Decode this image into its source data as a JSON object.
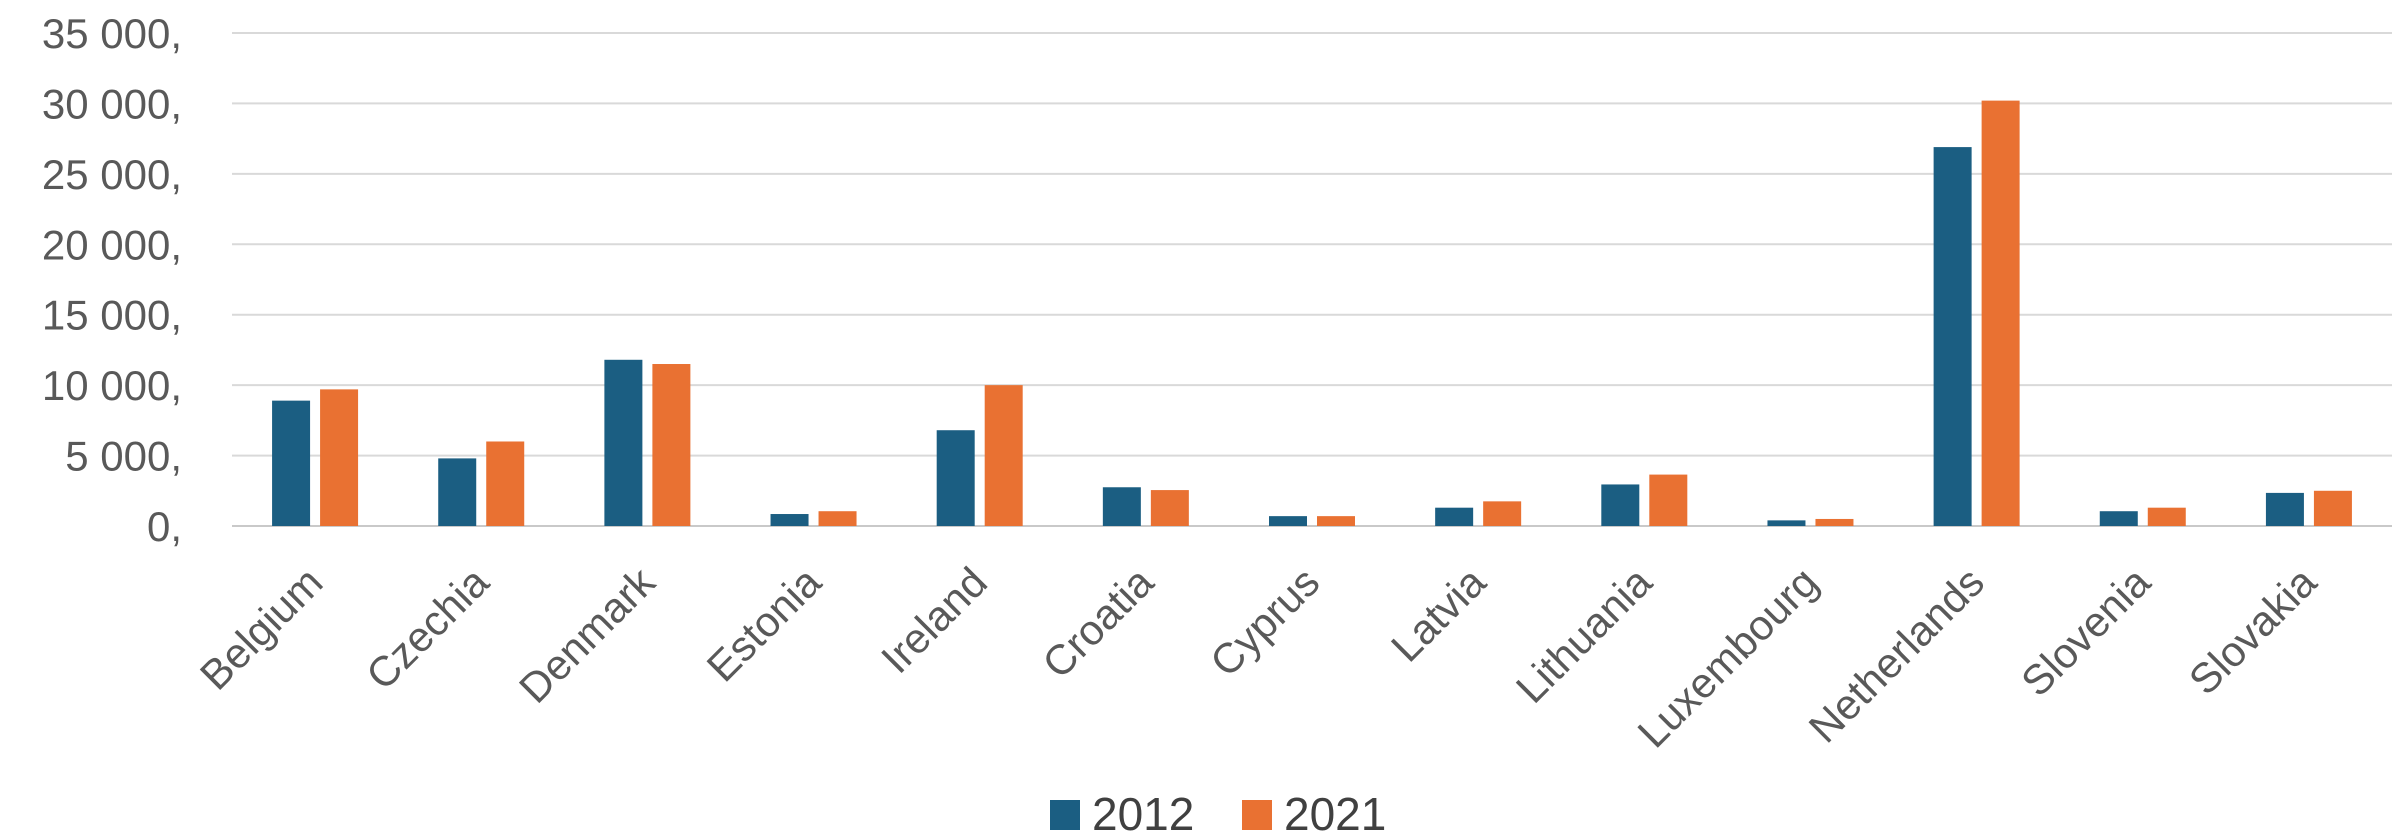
{
  "chart_data": {
    "type": "bar",
    "title": "",
    "xlabel": "",
    "ylabel": "",
    "ylim": [
      0,
      35000
    ],
    "grid": true,
    "legend_position": "bottom",
    "y_ticks": [
      {
        "value": 0,
        "label": "0,"
      },
      {
        "value": 5000,
        "label": "5 000,"
      },
      {
        "value": 10000,
        "label": "10 000,"
      },
      {
        "value": 15000,
        "label": "15 000,"
      },
      {
        "value": 20000,
        "label": "20 000,"
      },
      {
        "value": 25000,
        "label": "25 000,"
      },
      {
        "value": 30000,
        "label": "30 000,"
      },
      {
        "value": 35000,
        "label": "35 000,"
      }
    ],
    "categories": [
      "Belgium",
      "Czechia",
      "Denmark",
      "Estonia",
      "Ireland",
      "Croatia",
      "Cyprus",
      "Latvia",
      "Lithuania",
      "Luxembourg",
      "Netherlands",
      "Slovenia",
      "Slovakia"
    ],
    "series": [
      {
        "name": "2012",
        "color": "#1b5e82",
        "values": [
          8900,
          4800,
          11800,
          850,
          6800,
          2750,
          700,
          1300,
          2950,
          400,
          26900,
          1050,
          2350
        ]
      },
      {
        "name": "2021",
        "color": "#e97132",
        "values": [
          9700,
          6000,
          11500,
          1050,
          10000,
          2550,
          700,
          1750,
          3650,
          500,
          30200,
          1300,
          2500
        ]
      }
    ]
  }
}
